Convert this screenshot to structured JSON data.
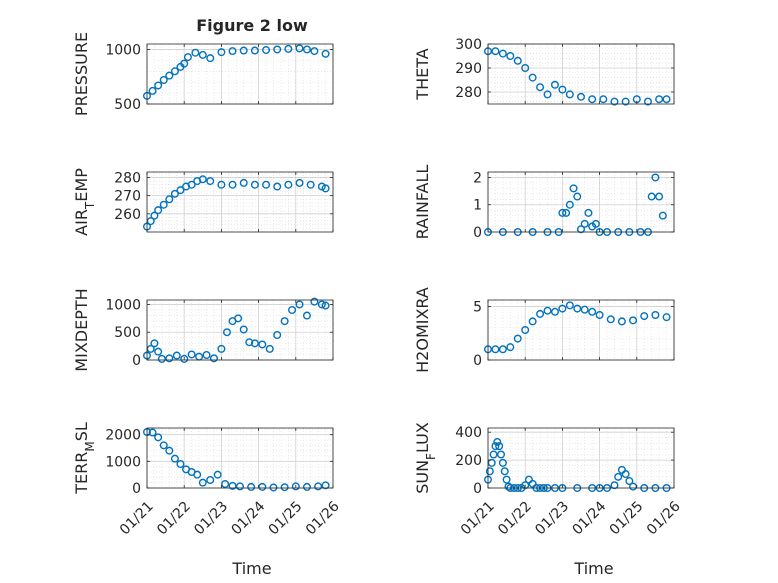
{
  "figure_title": "Figure 2 low",
  "x_ticks": [
    "01/21",
    "01/22",
    "01/23",
    "01/24",
    "01/25",
    "01/26"
  ],
  "x_label": "Time",
  "marker_color": "#0072BD",
  "chart_data": [
    {
      "type": "scatter",
      "ylabel": "PRESSURE",
      "ylabel_parts": [
        {
          "t": "PRESSURE"
        }
      ],
      "title": "Figure 2 low",
      "xlim": [
        0,
        5
      ],
      "ylim": [
        500,
        1050
      ],
      "yticks": [
        500,
        1000
      ],
      "grid": true,
      "series": [
        {
          "x": [
            0.0,
            0.15,
            0.3,
            0.45,
            0.6,
            0.75,
            0.9,
            1.0,
            1.1,
            1.3,
            1.5,
            1.7,
            2.0,
            2.3,
            2.6,
            2.9,
            3.2,
            3.5,
            3.8,
            4.1,
            4.3,
            4.5,
            4.8
          ],
          "y": [
            575,
            620,
            670,
            720,
            760,
            800,
            840,
            870,
            930,
            970,
            950,
            920,
            975,
            985,
            990,
            990,
            995,
            1000,
            1005,
            1010,
            1000,
            985,
            960
          ]
        }
      ]
    },
    {
      "type": "scatter",
      "ylabel": "THETA",
      "ylabel_parts": [
        {
          "t": "THETA"
        }
      ],
      "xlim": [
        0,
        5
      ],
      "ylim": [
        275,
        300
      ],
      "yticks": [
        280,
        290,
        300
      ],
      "grid": true,
      "series": [
        {
          "x": [
            0.0,
            0.2,
            0.4,
            0.6,
            0.8,
            1.0,
            1.2,
            1.4,
            1.6,
            1.8,
            2.0,
            2.2,
            2.5,
            2.8,
            3.1,
            3.4,
            3.7,
            4.0,
            4.3,
            4.6,
            4.8
          ],
          "y": [
            297,
            297,
            296,
            295,
            293,
            290,
            286,
            282,
            279,
            283,
            281,
            279,
            278,
            277,
            277,
            276,
            276,
            277,
            276,
            277,
            277
          ]
        }
      ]
    },
    {
      "type": "scatter",
      "ylabel": "AIR_TEMP",
      "ylabel_parts": [
        {
          "t": "AIR"
        },
        {
          "t": "T",
          "sub": true
        },
        {
          "t": "EMP"
        }
      ],
      "xlim": [
        0,
        5
      ],
      "ylim": [
        250,
        283
      ],
      "yticks": [
        260,
        270,
        280
      ],
      "grid": true,
      "series": [
        {
          "x": [
            0.0,
            0.1,
            0.2,
            0.3,
            0.45,
            0.6,
            0.75,
            0.9,
            1.05,
            1.2,
            1.35,
            1.5,
            1.7,
            2.0,
            2.3,
            2.6,
            2.9,
            3.2,
            3.5,
            3.8,
            4.1,
            4.4,
            4.7,
            4.8
          ],
          "y": [
            253,
            256,
            259,
            262,
            265,
            268,
            271,
            273,
            275,
            276,
            278,
            279,
            278,
            276,
            276,
            277,
            276,
            276,
            275,
            276,
            277,
            276,
            275,
            274
          ]
        }
      ]
    },
    {
      "type": "scatter",
      "ylabel": "RAINFALL",
      "ylabel_parts": [
        {
          "t": "RAINFALL"
        }
      ],
      "xlim": [
        0,
        5
      ],
      "ylim": [
        0,
        2.2
      ],
      "yticks": [
        0,
        1,
        2
      ],
      "grid": true,
      "series": [
        {
          "x": [
            0.0,
            0.4,
            0.8,
            1.2,
            1.6,
            1.9,
            2.0,
            2.1,
            2.2,
            2.3,
            2.4,
            2.5,
            2.6,
            2.7,
            2.8,
            2.9,
            3.0,
            3.2,
            3.5,
            3.8,
            4.1,
            4.3,
            4.4,
            4.5,
            4.6,
            4.7
          ],
          "y": [
            0,
            0,
            0,
            0,
            0,
            0,
            0.7,
            0.7,
            1.0,
            1.6,
            1.3,
            0.1,
            0.3,
            0.7,
            0.2,
            0.3,
            0,
            0,
            0,
            0,
            0,
            0,
            1.3,
            2.0,
            1.3,
            0.6
          ]
        }
      ]
    },
    {
      "type": "scatter",
      "ylabel": "MIXDEPTH",
      "ylabel_parts": [
        {
          "t": "MIXDEPTH"
        }
      ],
      "xlim": [
        0,
        5
      ],
      "ylim": [
        0,
        1080
      ],
      "yticks": [
        0,
        500,
        1000
      ],
      "grid": true,
      "series": [
        {
          "x": [
            0.0,
            0.1,
            0.2,
            0.3,
            0.4,
            0.6,
            0.8,
            1.0,
            1.2,
            1.4,
            1.6,
            1.8,
            2.0,
            2.15,
            2.3,
            2.45,
            2.6,
            2.75,
            2.9,
            3.1,
            3.3,
            3.5,
            3.7,
            3.9,
            4.1,
            4.3,
            4.5,
            4.7,
            4.8
          ],
          "y": [
            80,
            200,
            300,
            150,
            20,
            30,
            80,
            20,
            100,
            60,
            90,
            30,
            200,
            500,
            700,
            750,
            550,
            320,
            300,
            280,
            200,
            450,
            700,
            900,
            1000,
            800,
            1050,
            1000,
            980
          ]
        }
      ]
    },
    {
      "type": "scatter",
      "ylabel": "H2OMIXRA",
      "ylabel_parts": [
        {
          "t": "H2OMIXRA"
        }
      ],
      "xlim": [
        0,
        5
      ],
      "ylim": [
        0,
        5.6
      ],
      "yticks": [
        0,
        5
      ],
      "grid": true,
      "series": [
        {
          "x": [
            0.0,
            0.2,
            0.4,
            0.6,
            0.8,
            1.0,
            1.2,
            1.4,
            1.6,
            1.8,
            2.0,
            2.2,
            2.4,
            2.6,
            2.8,
            3.0,
            3.3,
            3.6,
            3.9,
            4.2,
            4.5,
            4.8
          ],
          "y": [
            1.0,
            1.0,
            1.0,
            1.2,
            2.0,
            2.8,
            3.6,
            4.3,
            4.6,
            4.5,
            4.8,
            5.1,
            4.8,
            4.7,
            4.5,
            4.2,
            3.8,
            3.6,
            3.7,
            4.1,
            4.2,
            4.0
          ]
        }
      ]
    },
    {
      "type": "scatter",
      "ylabel": "TERR_MSL",
      "ylabel_parts": [
        {
          "t": "TERR"
        },
        {
          "t": "M",
          "sub": true
        },
        {
          "t": "SL"
        }
      ],
      "xlim": [
        0,
        5
      ],
      "ylim": [
        0,
        2250
      ],
      "yticks": [
        0,
        1000,
        2000
      ],
      "grid": true,
      "series": [
        {
          "x": [
            0.0,
            0.15,
            0.3,
            0.45,
            0.6,
            0.75,
            0.9,
            1.05,
            1.2,
            1.35,
            1.5,
            1.7,
            1.9,
            2.1,
            2.3,
            2.5,
            2.8,
            3.1,
            3.4,
            3.7,
            4.0,
            4.3,
            4.6,
            4.8
          ],
          "y": [
            2100,
            2080,
            1900,
            1600,
            1400,
            1100,
            900,
            700,
            600,
            500,
            200,
            300,
            500,
            150,
            80,
            60,
            40,
            40,
            20,
            30,
            60,
            40,
            60,
            100
          ]
        }
      ]
    },
    {
      "type": "scatter",
      "ylabel": "SUN_FLUX",
      "ylabel_parts": [
        {
          "t": "SUN"
        },
        {
          "t": "F",
          "sub": true
        },
        {
          "t": "LUX"
        }
      ],
      "xlim": [
        0,
        5
      ],
      "ylim": [
        0,
        430
      ],
      "yticks": [
        0,
        200,
        400
      ],
      "grid": true,
      "series": [
        {
          "x": [
            0.0,
            0.05,
            0.1,
            0.15,
            0.2,
            0.25,
            0.3,
            0.35,
            0.4,
            0.45,
            0.5,
            0.55,
            0.6,
            0.7,
            0.8,
            0.9,
            1.0,
            1.1,
            1.2,
            1.3,
            1.4,
            1.5,
            1.6,
            1.8,
            2.0,
            2.4,
            2.8,
            3.0,
            3.2,
            3.4,
            3.5,
            3.6,
            3.7,
            3.8,
            3.9,
            4.2,
            4.5,
            4.8
          ],
          "y": [
            60,
            120,
            180,
            240,
            300,
            330,
            300,
            240,
            180,
            120,
            60,
            10,
            0,
            0,
            0,
            0,
            20,
            60,
            30,
            0,
            0,
            0,
            0,
            0,
            0,
            0,
            0,
            0,
            0,
            20,
            80,
            130,
            100,
            50,
            10,
            0,
            0,
            0
          ]
        }
      ]
    }
  ]
}
